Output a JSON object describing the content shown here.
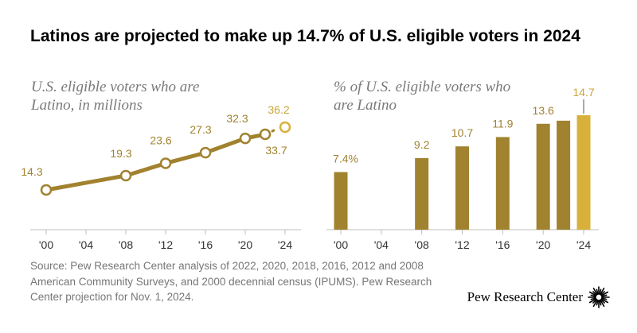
{
  "headline": "Latinos are projected to make up 14.7% of U.S. eligible voters in 2024",
  "chart_data": [
    {
      "type": "line",
      "title": "U.S. eligible voters who are Latino, in millions",
      "title_lines": [
        "U.S. eligible voters who are",
        "Latino, in millions"
      ],
      "x": [
        2000,
        2008,
        2012,
        2016,
        2020,
        2022
      ],
      "values": [
        14.3,
        19.3,
        23.6,
        27.3,
        32.3,
        33.7
      ],
      "labels": [
        "14.3",
        "19.3",
        "23.6",
        "27.3",
        "32.3",
        "33.7"
      ],
      "projection": {
        "x": 2024,
        "value": 36.2,
        "label": "36.2"
      },
      "xticks": [
        2000,
        2004,
        2008,
        2012,
        2016,
        2020,
        2024
      ],
      "xtick_labels": [
        "'00",
        "'04",
        "'08",
        "'12",
        "'16",
        "'20",
        "'24"
      ],
      "xlim": [
        2000,
        2024
      ],
      "ylim": [
        0,
        40
      ],
      "grid": false
    },
    {
      "type": "bar",
      "title": "% of U.S. eligible voters who are Latino",
      "title_lines": [
        "% of U.S. eligible voters who",
        "are Latino"
      ],
      "x": [
        2000,
        2008,
        2012,
        2016,
        2020,
        2022,
        2024
      ],
      "values": [
        7.4,
        9.2,
        10.7,
        11.9,
        13.6,
        14.0,
        14.7
      ],
      "labels": [
        "7.4%",
        "9.2",
        "10.7",
        "11.9",
        "13.6",
        "",
        "14.7"
      ],
      "projected_year": 2024,
      "xticks": [
        2000,
        2004,
        2008,
        2012,
        2016,
        2020,
        2024
      ],
      "xtick_labels": [
        "'00",
        "'04",
        "'08",
        "'12",
        "'16",
        "'20",
        "'24"
      ],
      "xlim": [
        2000,
        2024
      ],
      "ylim": [
        0,
        16
      ],
      "grid": false
    }
  ],
  "colors": {
    "actual": "#a1822f",
    "projected": "#d8b13a",
    "axis": "#bdbdbd",
    "label_actual": "#a1822f",
    "label_projected": "#c9a53a",
    "tick_text": "#333333"
  },
  "source": "Source: Pew Research Center analysis of 2022, 2020, 2018, 2016, 2012 and 2008 American Community Surveys, and 2000 decennial census (IPUMS). Pew Research Center projection for Nov. 1, 2024.",
  "logo": {
    "name": "Pew Research Center",
    "icon": "pew-sunburst-icon"
  }
}
